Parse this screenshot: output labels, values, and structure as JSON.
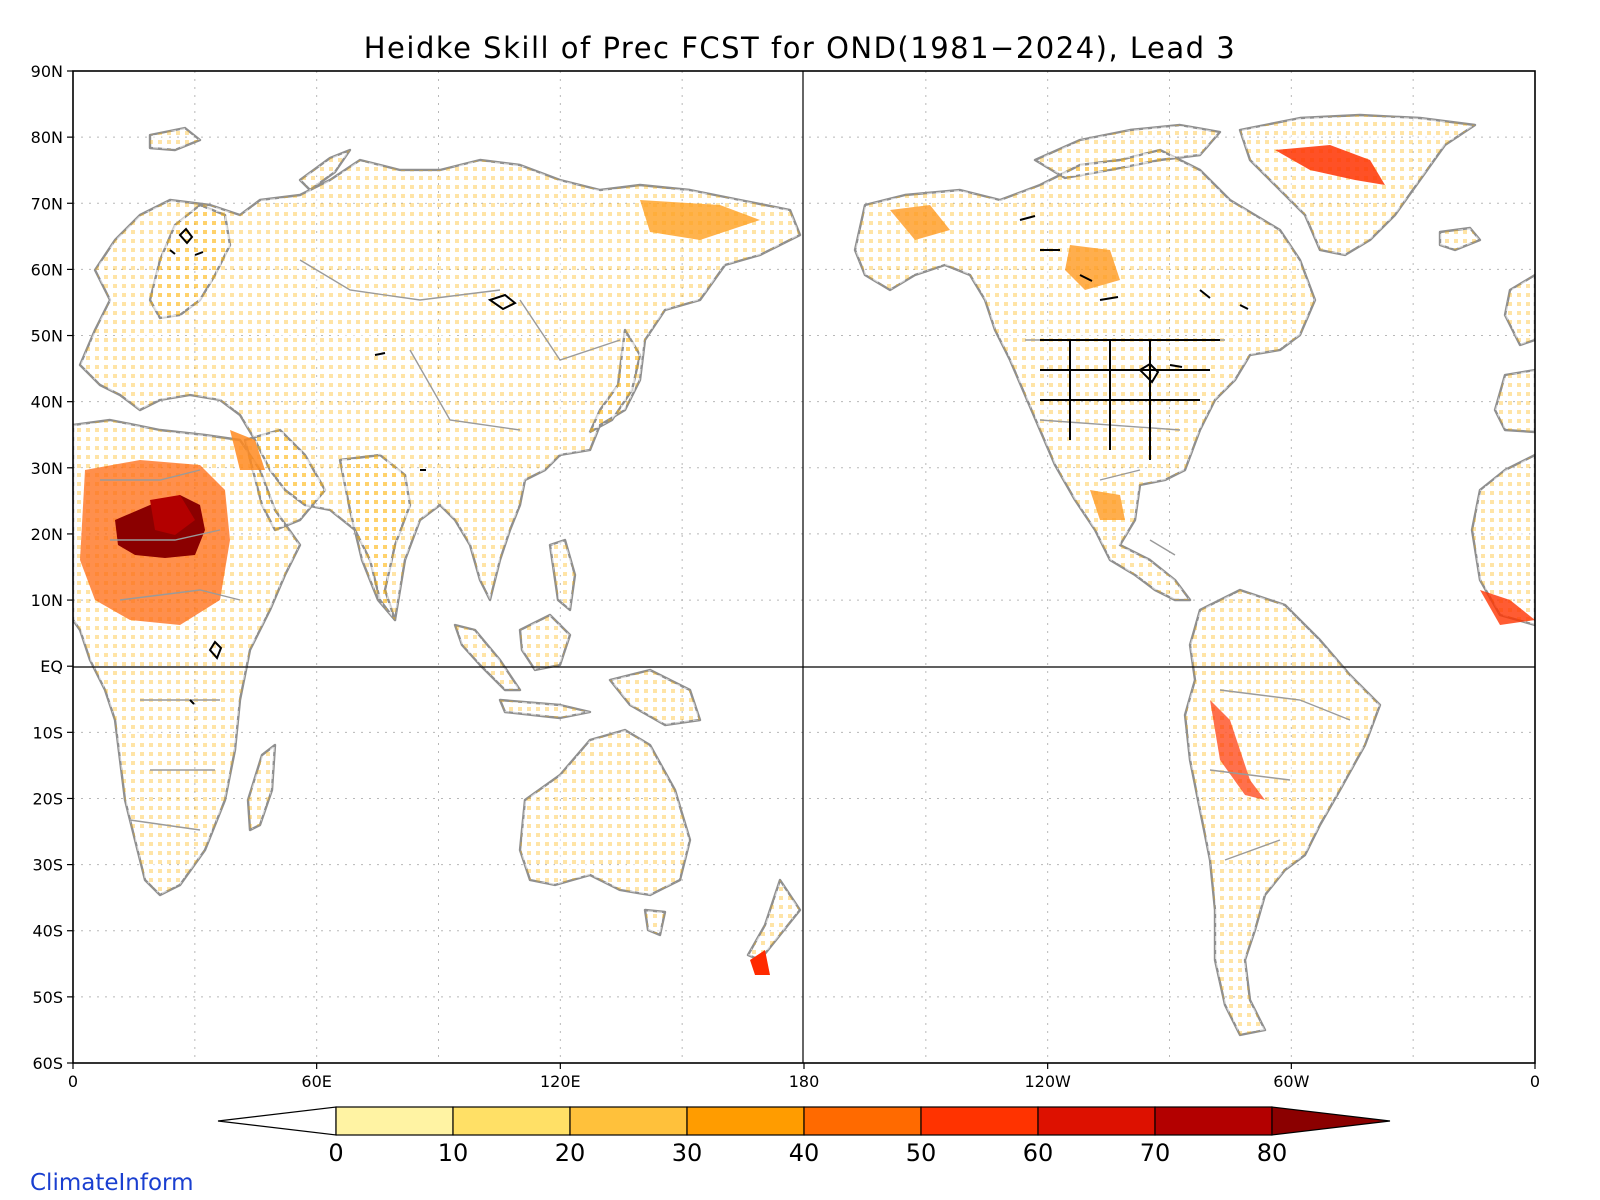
{
  "title": "Heidke Skill of Prec FCST for OND(1981−2024), Lead 3",
  "credit": "ClimateInform",
  "lat_labels": [
    "90N",
    "80N",
    "70N",
    "60N",
    "50N",
    "40N",
    "30N",
    "20N",
    "10N",
    "EQ",
    "10S",
    "20S",
    "30S",
    "40S",
    "50S",
    "60S"
  ],
  "lon_labels": [
    "0",
    "60E",
    "120E",
    "180",
    "120W",
    "60W",
    "0"
  ],
  "colorbar": {
    "tick_labels": [
      "0",
      "10",
      "20",
      "30",
      "40",
      "50",
      "60",
      "70",
      "80"
    ],
    "colors": [
      "#ffffff",
      "#fff3a3",
      "#ffe066",
      "#ffc13b",
      "#ff9c00",
      "#ff6a00",
      "#ff3300",
      "#dd1100",
      "#b30000",
      "#8b0000"
    ]
  },
  "chart_data": {
    "type": "heatmap",
    "title": "Heidke Skill of Prec FCST for OND(1981−2024), Lead 3",
    "xlim": [
      0,
      360
    ],
    "ylim": [
      -60,
      90
    ],
    "levels": [
      0,
      10,
      20,
      30,
      40,
      50,
      60,
      70,
      80
    ],
    "extend": "both",
    "grid": true,
    "legend": "bottom"
  }
}
